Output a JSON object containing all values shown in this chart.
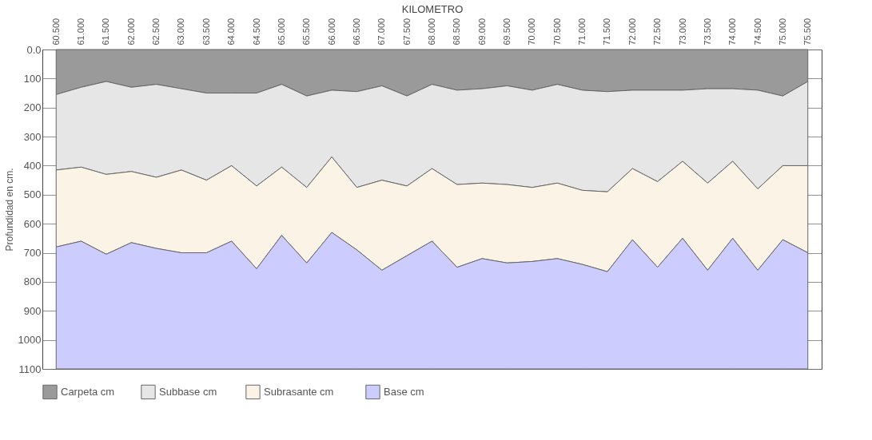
{
  "chart_data": {
    "type": "area",
    "stacked": true,
    "xlabel": "KILOMETRO",
    "ylabel": "Profundidad en cm.",
    "categories": [
      "60.500",
      "61.000",
      "61.500",
      "62.000",
      "62.500",
      "63.000",
      "63.500",
      "64.000",
      "64.500",
      "65.000",
      "65.500",
      "66.000",
      "66.500",
      "67.000",
      "67.500",
      "68.000",
      "68.500",
      "69.000",
      "69.500",
      "70.000",
      "70.500",
      "71.000",
      "71.500",
      "72.000",
      "72.500",
      "73.000",
      "73.500",
      "74.000",
      "74.500",
      "75.000",
      "75.500"
    ],
    "series": [
      {
        "name": "Carpeta cm",
        "color": "#9a9a9a",
        "values": [
          155,
          130,
          110,
          130,
          120,
          135,
          150,
          150,
          150,
          120,
          160,
          140,
          145,
          125,
          160,
          120,
          140,
          135,
          125,
          140,
          120,
          140,
          145,
          140,
          140,
          140,
          135,
          135,
          140,
          160,
          110
        ]
      },
      {
        "name": "Subbase  cm",
        "color": "#e6e6e6",
        "values": [
          260,
          275,
          320,
          290,
          320,
          280,
          300,
          250,
          320,
          285,
          315,
          230,
          330,
          325,
          310,
          290,
          325,
          325,
          340,
          335,
          340,
          345,
          345,
          270,
          315,
          245,
          325,
          250,
          340,
          240,
          290
        ]
      },
      {
        "name": "Subrasante   cm",
        "color": "#fbf3e6",
        "values": [
          265,
          255,
          275,
          245,
          245,
          285,
          250,
          260,
          285,
          235,
          260,
          260,
          215,
          310,
          240,
          250,
          285,
          260,
          270,
          255,
          260,
          255,
          275,
          245,
          295,
          265,
          300,
          265,
          280,
          255,
          300
        ]
      },
      {
        "name": "Base cm",
        "color": "#ccccff",
        "values": [
          420,
          440,
          395,
          435,
          415,
          400,
          400,
          440,
          345,
          460,
          365,
          470,
          410,
          340,
          390,
          440,
          350,
          380,
          365,
          370,
          380,
          360,
          335,
          445,
          350,
          450,
          340,
          450,
          340,
          445,
          400
        ]
      }
    ],
    "ylim": [
      1100,
      0
    ],
    "yticks": [
      {
        "value": 0,
        "label": "0.0"
      },
      100,
      200,
      300,
      400,
      500,
      600,
      700,
      800,
      900,
      1000,
      1100
    ],
    "grid": "y",
    "legend": "bottom"
  }
}
